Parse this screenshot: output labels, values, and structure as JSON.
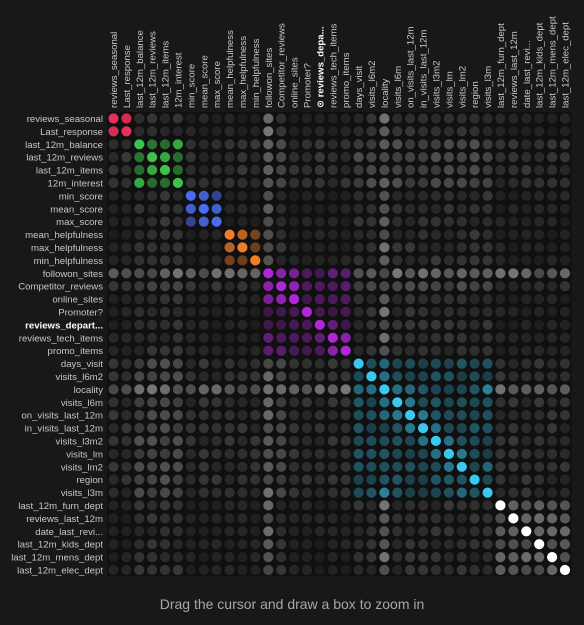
{
  "hint": "Drag the cursor and draw a box to zoom in",
  "highlight_prefix": "⊙ ",
  "chart_data": {
    "type": "heatmap",
    "row_labels": [
      "reviews_seasonal",
      "Last_response",
      "last_12m_balance",
      "last_12m_reviews",
      "last_12m_items",
      "12m_interest",
      "min_score",
      "mean_score",
      "max_score",
      "mean_helpfulness",
      "max_helpfulness",
      "min_helpfulness",
      "followon_sites",
      "Competitor_reviews",
      "online_sites",
      "Promoter?",
      "reviews_depart...",
      "reviews_tech_items",
      "promo_items",
      "days_visit",
      "visits_l6m2",
      "locality",
      "visits_l6m",
      "on_visits_last_12m",
      "in_visits_last_12m",
      "visits_l3m2",
      "visits_lm",
      "visits_lm2",
      "region",
      "visits_l3m",
      "last_12m_furn_dept",
      "reviews_last_12m",
      "date_last_revi...",
      "last_12m_kids_dept",
      "last_12m_mens_dept",
      "last_12m_elec_dept"
    ],
    "col_labels": [
      "reviews_seasonal",
      "Last_response",
      "last_12m_balance",
      "last_12m_reviews",
      "last_12m_items",
      "12m_interest",
      "min_score",
      "mean_score",
      "max_score",
      "mean_helpfulness",
      "max_helpfulness",
      "min_helpfulness",
      "followon_sites",
      "Competitor_reviews",
      "online_sites",
      "Promoter?",
      "reviews_depa...",
      "reviews_tech_items",
      "promo_items",
      "days_visit",
      "visits_l6m2",
      "locality",
      "visits_l6m",
      "on_visits_last_12m",
      "in_visits_last_12m",
      "visits_l3m2",
      "visits_lm",
      "visits_lm2",
      "region",
      "visits_l3m",
      "last_12m_furn_dept",
      "reviews_last_12m",
      "date_last_revi...",
      "last_12m_kids_dept",
      "last_12m_mens_dept",
      "last_12m_elec_dept"
    ],
    "highlighted_variable": 16,
    "clusters": [
      {
        "start": 0,
        "end": 1,
        "color": "#e8305a"
      },
      {
        "start": 2,
        "end": 5,
        "color": "#3cc24a"
      },
      {
        "start": 6,
        "end": 8,
        "color": "#4a6cf0"
      },
      {
        "start": 9,
        "end": 11,
        "color": "#f07c2a"
      },
      {
        "start": 12,
        "end": 18,
        "color": "#b026d8"
      },
      {
        "start": 19,
        "end": 29,
        "color": "#38c8f0"
      },
      {
        "start": 30,
        "end": 35,
        "color": "#ffffff"
      }
    ],
    "background_color": "#181818",
    "diagonal_values": 1.0,
    "within_cluster_values": [
      {
        "row": 0,
        "col": 1,
        "value": 0.9
      },
      {
        "row": 2,
        "col": 3,
        "value": 0.55
      },
      {
        "row": 2,
        "col": 5,
        "value": 0.85
      },
      {
        "row": 3,
        "col": 4,
        "value": 0.85
      },
      {
        "row": 2,
        "col": 4,
        "value": 0.5
      },
      {
        "row": 3,
        "col": 5,
        "value": 0.5
      },
      {
        "row": 4,
        "col": 5,
        "value": 0.5
      },
      {
        "row": 6,
        "col": 7,
        "value": 0.85
      },
      {
        "row": 7,
        "col": 8,
        "value": 0.85
      },
      {
        "row": 6,
        "col": 8,
        "value": 0.55
      },
      {
        "row": 9,
        "col": 10,
        "value": 0.75
      },
      {
        "row": 9,
        "col": 11,
        "value": 0.45
      },
      {
        "row": 10,
        "col": 11,
        "value": 0.4
      },
      {
        "row": 12,
        "col": 13,
        "value": 0.75
      },
      {
        "row": 12,
        "col": 14,
        "value": 0.65
      },
      {
        "row": 13,
        "col": 14,
        "value": 0.8
      },
      {
        "row": 12,
        "col": 17,
        "value": 0.5
      },
      {
        "row": 12,
        "col": 18,
        "value": 0.45
      },
      {
        "row": 13,
        "col": 18,
        "value": 0.45
      },
      {
        "row": 16,
        "col": 17,
        "value": 0.5
      },
      {
        "row": 17,
        "col": 18,
        "value": 0.75
      },
      {
        "row": 13,
        "col": 17,
        "value": 0.35
      },
      {
        "row": 19,
        "col": 21,
        "value": 0.45
      },
      {
        "row": 20,
        "col": 21,
        "value": 0.5
      },
      {
        "row": 21,
        "col": 22,
        "value": 0.5
      },
      {
        "row": 22,
        "col": 23,
        "value": 0.55
      },
      {
        "row": 23,
        "col": 24,
        "value": 0.55
      },
      {
        "row": 24,
        "col": 25,
        "value": 0.5
      },
      {
        "row": 25,
        "col": 26,
        "value": 0.5
      },
      {
        "row": 26,
        "col": 27,
        "value": 0.55
      },
      {
        "row": 27,
        "col": 29,
        "value": 0.45
      },
      {
        "row": 21,
        "col": 29,
        "value": 0.6
      },
      {
        "row": 21,
        "col": 28,
        "value": 0.35
      },
      {
        "row": 21,
        "col": 23,
        "value": 0.45
      }
    ]
  }
}
